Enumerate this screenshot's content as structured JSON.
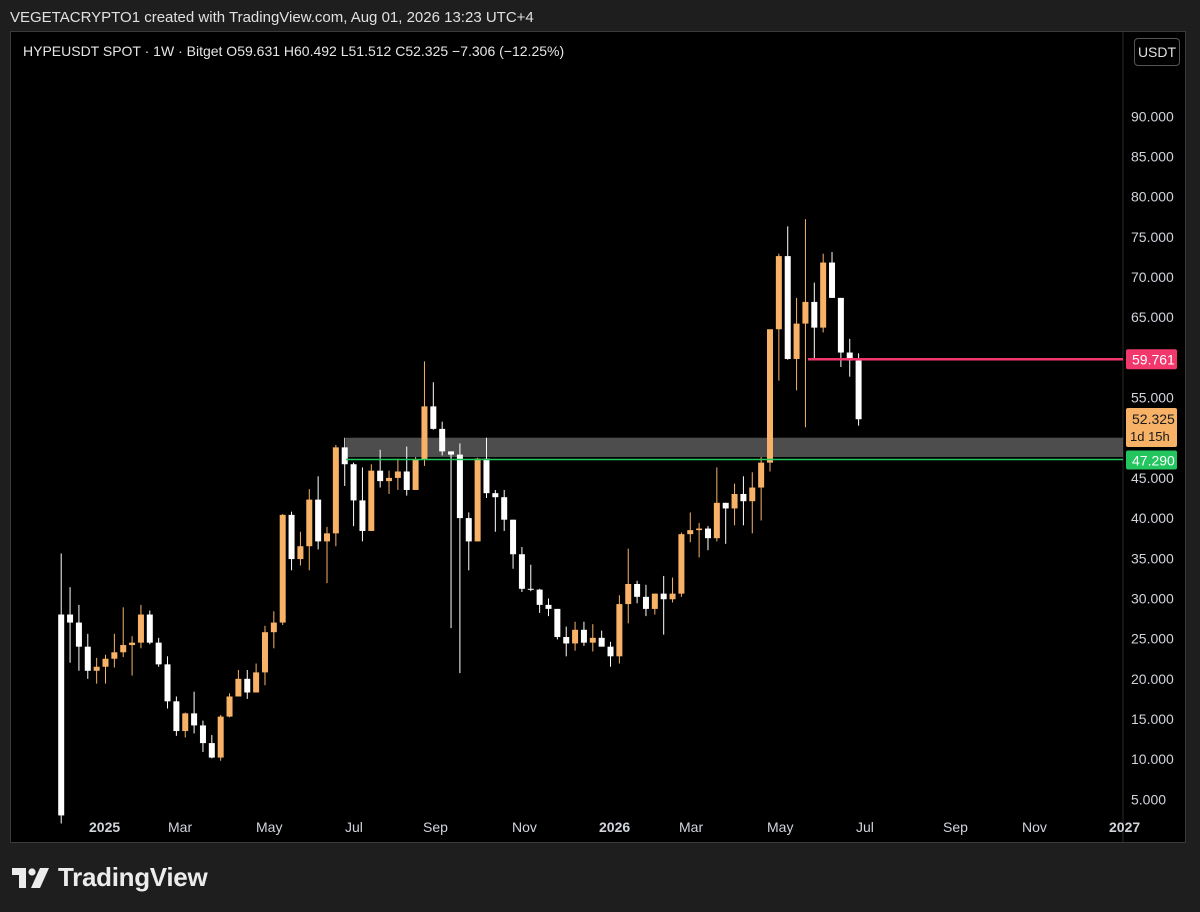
{
  "credit": "VEGETACRYPTO1 created with TradingView.com, Aug 01, 2026 13:23 UTC+4",
  "header": {
    "symbol_line": "HYPEUSDT SPOT · 1W · Bitget  O59.631  H60.492  L51.512  C52.325  −7.306 (−12.25%)",
    "unit": "USDT"
  },
  "brand": {
    "name": "TradingView"
  },
  "colors": {
    "up": "#f7b267",
    "down": "#ffffff",
    "resistance": "#f2376d",
    "support": "#22c55e",
    "zone": "#6b6b6b"
  },
  "chart_data": {
    "type": "candlestick",
    "symbol": "HYPEUSDT",
    "interval": "1W",
    "exchange": "Bitget",
    "y_axis_ticks": [
      "90.000",
      "85.000",
      "80.000",
      "75.000",
      "70.000",
      "65.000",
      "60.000",
      "55.000",
      "50.000",
      "45.000",
      "40.000",
      "35.000",
      "30.000",
      "25.000",
      "20.000",
      "15.000",
      "10.000",
      "5.000"
    ],
    "x_axis_labels": [
      "2025",
      "Mar",
      "May",
      "Jul",
      "Sep",
      "Nov",
      "2026",
      "Mar",
      "May",
      "Jul",
      "Sep",
      "Nov",
      "2027"
    ],
    "ylim": [
      3.8,
      97.5
    ],
    "price_labels": [
      {
        "name": "resistance",
        "text": "59.761",
        "value": 59.761
      },
      {
        "name": "last",
        "text": "52.325",
        "sub": "1d 15h",
        "value": 52.325
      },
      {
        "name": "support",
        "text": "47.290",
        "value": 47.29
      }
    ],
    "support_zone": [
      47.6,
      50.0
    ],
    "candles": [
      [
        28,
        35.6,
        2,
        3
      ],
      [
        28,
        31.4,
        22,
        27
      ],
      [
        27,
        29.2,
        21,
        24
      ],
      [
        24,
        25.6,
        20,
        21
      ],
      [
        21,
        22.6,
        19.4,
        21.5
      ],
      [
        21.5,
        23,
        19.4,
        22.5
      ],
      [
        22.5,
        25.6,
        21.4,
        23.3
      ],
      [
        23.3,
        28.9,
        22.7,
        24.2
      ],
      [
        24.2,
        25.3,
        20.4,
        24.5
      ],
      [
        24.5,
        29.2,
        23.8,
        28
      ],
      [
        28,
        28.5,
        24.3,
        24.5
      ],
      [
        24.5,
        25.1,
        21.5,
        21.8
      ],
      [
        21.8,
        22.8,
        16.3,
        17.2
      ],
      [
        17.2,
        17.8,
        12.9,
        13.5
      ],
      [
        13.5,
        15.8,
        12.7,
        15.7
      ],
      [
        15.7,
        18.4,
        13.2,
        14.2
      ],
      [
        14.2,
        14.8,
        10.9,
        12
      ],
      [
        12,
        13,
        10.1,
        10.2
      ],
      [
        10.2,
        15.5,
        9.8,
        15.3
      ],
      [
        15.3,
        18.2,
        15.2,
        17.8
      ],
      [
        17.8,
        21.1,
        17.8,
        20
      ],
      [
        20,
        21.1,
        17.5,
        18.3
      ],
      [
        18.3,
        21.9,
        18.3,
        20.8
      ],
      [
        20.8,
        26.6,
        19.2,
        25.8
      ],
      [
        25.8,
        28.4,
        23.8,
        27
      ],
      [
        27,
        40.5,
        26.7,
        40.4
      ],
      [
        40.4,
        40.8,
        33.5,
        34.9
      ],
      [
        34.9,
        38.3,
        34.1,
        36.5
      ],
      [
        36.5,
        43.6,
        33.5,
        42.3
      ],
      [
        42.3,
        45.2,
        36.1,
        37.1
      ],
      [
        37.1,
        38.9,
        31.9,
        38.1
      ],
      [
        38.1,
        49.1,
        36.5,
        48.8
      ],
      [
        48.8,
        50,
        44,
        46.7
      ],
      [
        46.7,
        46.9,
        39,
        42.2
      ],
      [
        42.2,
        46.3,
        37.1,
        38.4
      ],
      [
        38.4,
        46.7,
        38.4,
        45.9
      ],
      [
        45.9,
        48.5,
        43.8,
        44.6
      ],
      [
        44.6,
        45.9,
        43,
        45
      ],
      [
        45,
        47.4,
        43.5,
        45.8
      ],
      [
        45.8,
        48.9,
        42.8,
        43.5
      ],
      [
        43.5,
        47.6,
        43.5,
        47.3
      ],
      [
        47.3,
        59.5,
        46.5,
        53.9
      ],
      [
        53.9,
        56.9,
        51,
        51.1
      ],
      [
        51.1,
        52,
        47.8,
        48.3
      ],
      [
        48.3,
        48.3,
        26.3,
        47.9
      ],
      [
        47.9,
        49.3,
        20.7,
        40
      ],
      [
        40,
        40.7,
        33.5,
        37.1
      ],
      [
        37.1,
        47.5,
        37.1,
        47.4
      ],
      [
        47.4,
        50,
        42.5,
        43.1
      ],
      [
        43.1,
        43.5,
        38.3,
        42.6
      ],
      [
        42.6,
        43.5,
        38.4,
        39.8
      ],
      [
        39.8,
        39.8,
        33.7,
        35.5
      ],
      [
        35.5,
        36.4,
        30.8,
        31.2
      ],
      [
        31.2,
        34.2,
        30.9,
        31.1
      ],
      [
        31.1,
        31.2,
        28.2,
        29.2
      ],
      [
        29.2,
        30,
        27.8,
        28.7
      ],
      [
        28.7,
        28.7,
        24.9,
        25.2
      ],
      [
        25.2,
        26.5,
        22.8,
        24.4
      ],
      [
        24.4,
        27.1,
        23.5,
        26.1
      ],
      [
        26.1,
        27.1,
        24.1,
        24.5
      ],
      [
        24.5,
        26.8,
        23.4,
        25.1
      ],
      [
        25.1,
        26,
        24.1,
        24
      ],
      [
        24,
        24.6,
        21.5,
        22.8
      ],
      [
        22.8,
        30.4,
        21.9,
        29.3
      ],
      [
        29.3,
        36.2,
        26.9,
        31.8
      ],
      [
        31.8,
        32.2,
        29.4,
        30.2
      ],
      [
        30.2,
        31.7,
        27.8,
        28.7
      ],
      [
        28.7,
        30.6,
        28,
        30.6
      ],
      [
        30.6,
        32.8,
        25.5,
        29.9
      ],
      [
        29.9,
        32.6,
        29.5,
        30.6
      ],
      [
        30.6,
        38.2,
        30.2,
        38
      ],
      [
        38,
        40.7,
        37,
        38.5
      ],
      [
        38.5,
        39.4,
        35.1,
        38.7
      ],
      [
        38.7,
        39,
        36,
        37.5
      ],
      [
        37.5,
        46.3,
        37.1,
        41.9
      ],
      [
        41.9,
        41.9,
        36.8,
        41.2
      ],
      [
        41.2,
        44.3,
        39.1,
        43
      ],
      [
        43,
        45.2,
        39.1,
        42.1
      ],
      [
        42.1,
        45.7,
        38.1,
        43.8
      ],
      [
        43.8,
        47.6,
        39.7,
        46.9
      ],
      [
        46.9,
        63.4,
        45.8,
        63.5
      ],
      [
        63.5,
        72.9,
        57.1,
        72.6
      ],
      [
        72.6,
        76.3,
        59.7,
        59.8
      ],
      [
        59.8,
        67.4,
        55.9,
        64.2
      ],
      [
        64.2,
        77.2,
        51.3,
        66.9
      ],
      [
        66.9,
        69.3,
        59.8,
        63.7
      ],
      [
        63.7,
        72.9,
        63.1,
        71.8
      ],
      [
        71.8,
        73.1,
        67.4,
        67.4
      ],
      [
        67.4,
        67.4,
        58.8,
        60.6
      ],
      [
        60.6,
        62.3,
        57.6,
        59.6
      ],
      [
        59.6,
        60.5,
        51.5,
        52.3
      ]
    ]
  }
}
